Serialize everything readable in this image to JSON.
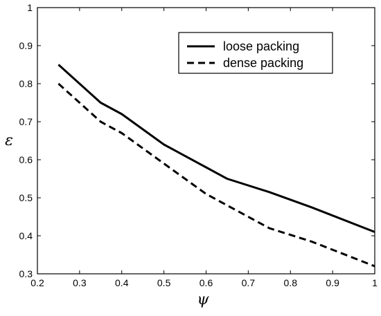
{
  "chart_data": {
    "type": "line",
    "title": "",
    "xlabel": "ψ",
    "ylabel": "ε",
    "xlim": [
      0.2,
      1.0
    ],
    "ylim": [
      0.3,
      1.0
    ],
    "xticks": [
      "0.2",
      "0.3",
      "0.4",
      "0.5",
      "0.6",
      "0.7",
      "0.8",
      "0.9",
      "1"
    ],
    "yticks": [
      "0.3",
      "0.4",
      "0.5",
      "0.6",
      "0.7",
      "0.8",
      "0.9",
      "1"
    ],
    "grid": false,
    "legend_position": "top-right",
    "series": [
      {
        "name": "loose packing",
        "style": "solid",
        "color": "#000000",
        "x": [
          0.25,
          0.35,
          0.4,
          0.5,
          0.6,
          0.65,
          0.75,
          0.85,
          1.0
        ],
        "y": [
          0.85,
          0.75,
          0.72,
          0.64,
          0.58,
          0.55,
          0.515,
          0.475,
          0.41
        ]
      },
      {
        "name": "dense packing",
        "style": "dashed",
        "color": "#000000",
        "x": [
          0.25,
          0.35,
          0.4,
          0.5,
          0.6,
          0.65,
          0.75,
          0.85,
          1.0
        ],
        "y": [
          0.8,
          0.7,
          0.67,
          0.59,
          0.51,
          0.48,
          0.42,
          0.385,
          0.32
        ]
      }
    ]
  }
}
